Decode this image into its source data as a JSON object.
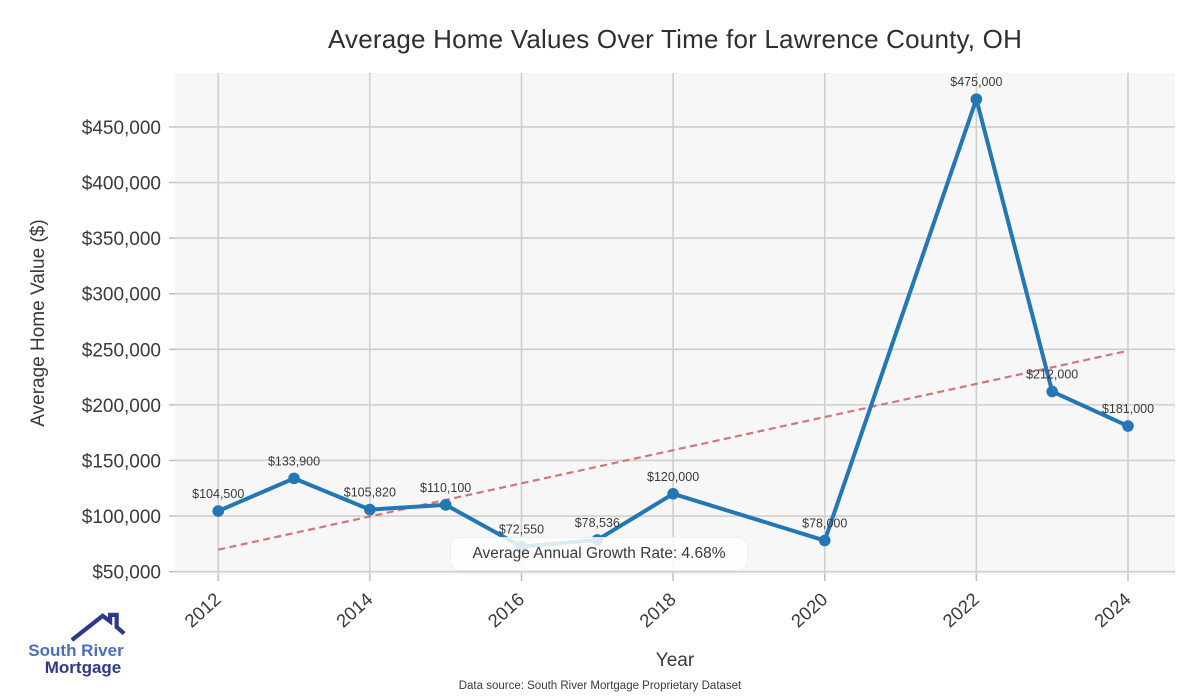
{
  "chart_data": {
    "type": "line",
    "title": "Average Home Values Over Time for Lawrence County, OH",
    "xlabel": "Year",
    "ylabel": "Average Home Value ($)",
    "x": [
      2012,
      2013,
      2014,
      2015,
      2016,
      2017,
      2018,
      2020,
      2022,
      2023,
      2024
    ],
    "values": [
      104500,
      133900,
      105820,
      110100,
      72550,
      78536,
      120000,
      78000,
      475000,
      212000,
      181000
    ],
    "point_labels": [
      "$104,500",
      "$133,900",
      "$105,820",
      "$110,100",
      "$72,550",
      "$78,536",
      "$120,000",
      "$78,000",
      "$475,000",
      "$212,000",
      "$181,000"
    ],
    "x_ticks": [
      2012,
      2014,
      2016,
      2018,
      2020,
      2022,
      2024
    ],
    "x_tick_labels": [
      "2012",
      "2014",
      "2016",
      "2018",
      "2020",
      "2022",
      "2024"
    ],
    "y_ticks": [
      50000,
      100000,
      150000,
      200000,
      250000,
      300000,
      350000,
      400000,
      450000
    ],
    "y_tick_labels": [
      "$50,000",
      "$100,000",
      "$150,000",
      "$200,000",
      "$250,000",
      "$300,000",
      "$350,000",
      "$400,000",
      "$450,000"
    ],
    "xlim": [
      2011.43,
      2024.62
    ],
    "ylim": [
      47000,
      498500
    ],
    "grid": true,
    "legend": "none",
    "line_color": "#2277b4",
    "trend_color": "#cd6a6d",
    "plot_bg_color": "#f7f7f7",
    "grid_color": "#cfcfcf",
    "label_color": "#3a3a3a",
    "trendline": {
      "x": [
        2012,
        2024
      ],
      "values": [
        69800,
        248700
      ],
      "style": "dashed"
    },
    "annotation": "Average Annual Growth Rate: 4.68%"
  },
  "footer": {
    "text": "Data source: South River Mortgage Proprietary Dataset"
  },
  "logo": {
    "name_line1": "South River",
    "name_line2": "Mortgage",
    "colors": {
      "primary": "#2d3a8c",
      "secondary": "#4a6fc0"
    }
  }
}
